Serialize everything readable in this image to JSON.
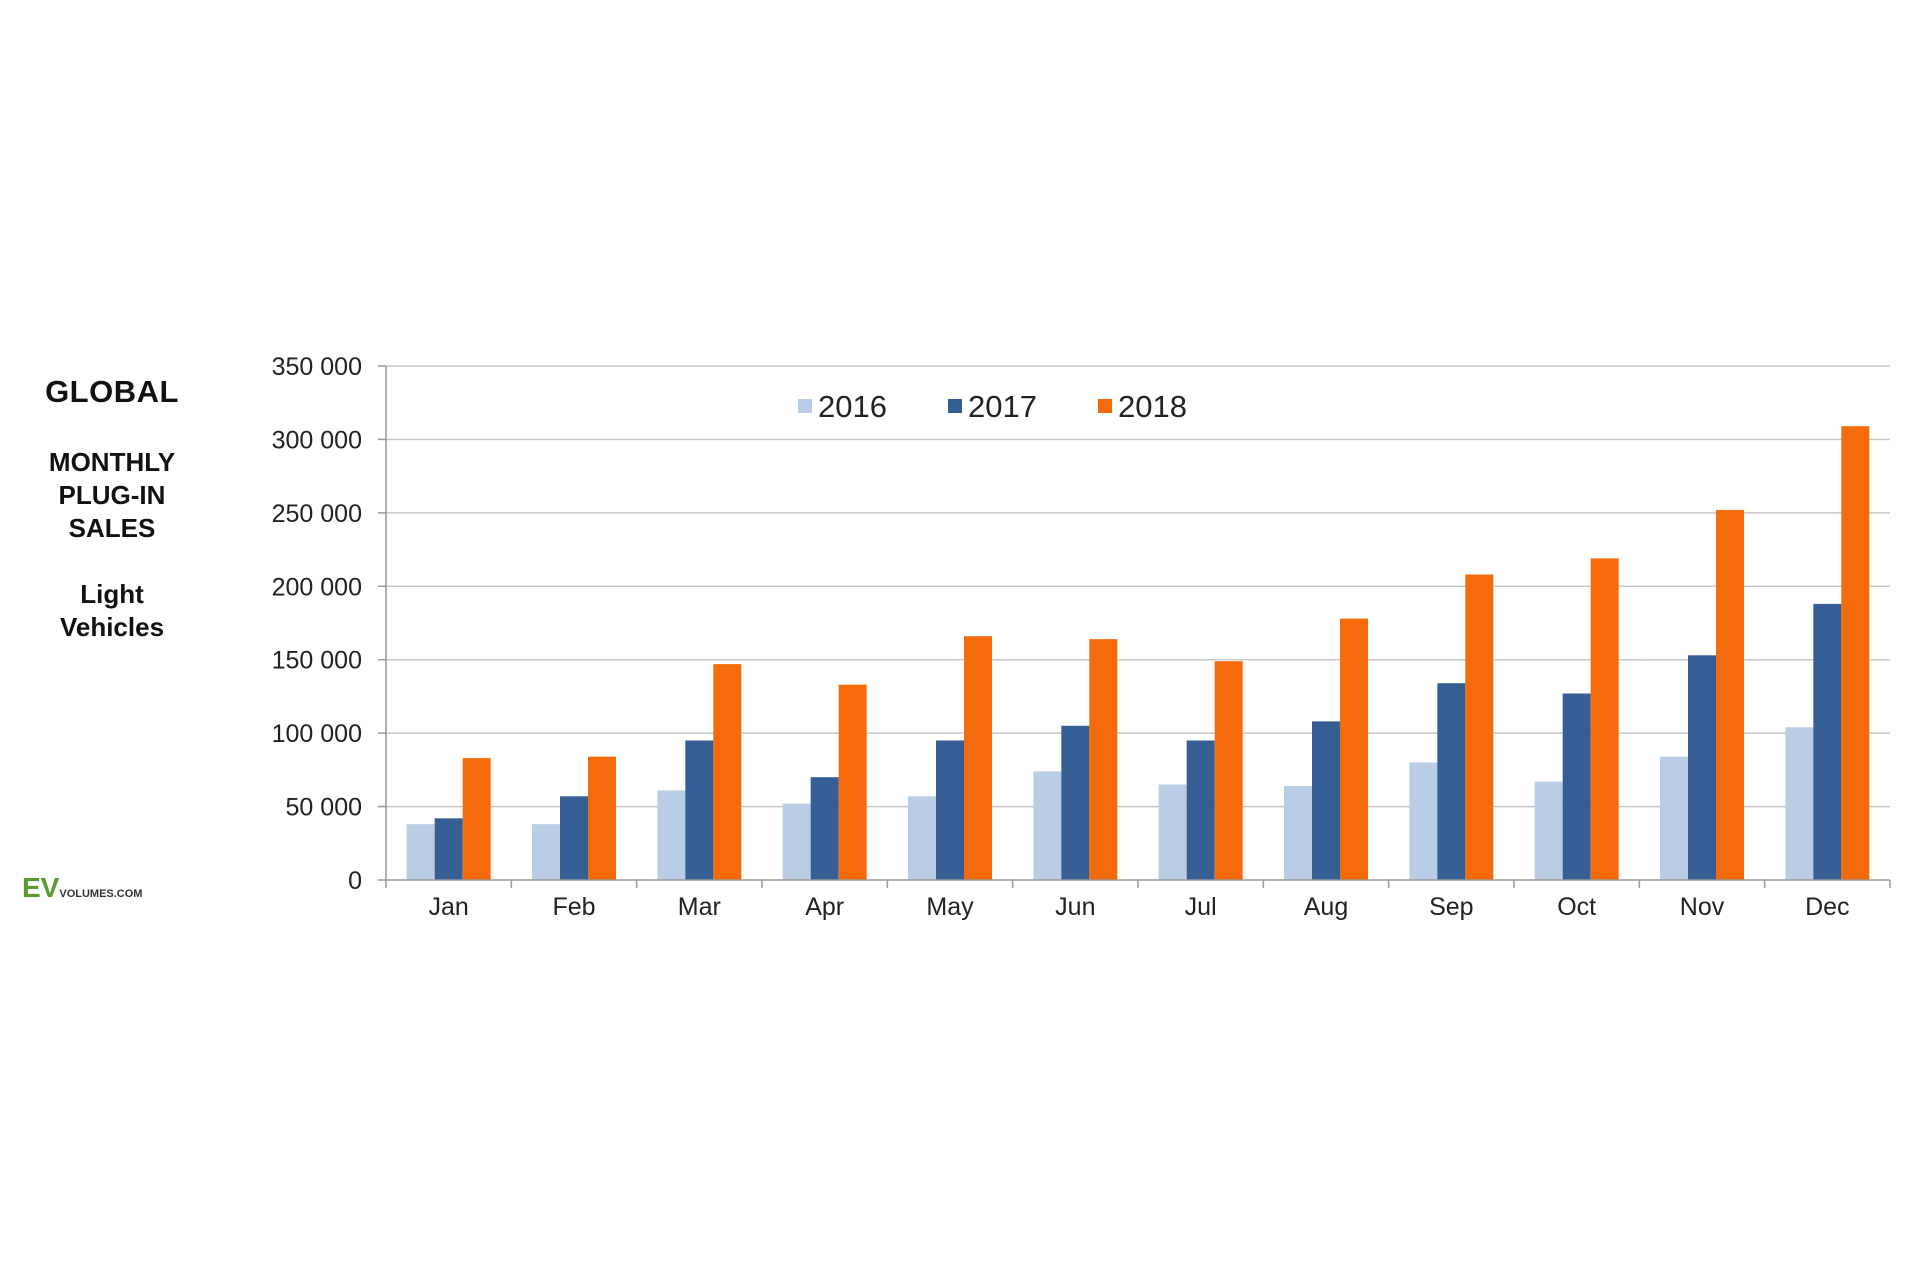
{
  "side_label": {
    "title": "GLOBAL",
    "subtitle_lines": [
      "MONTHLY",
      "PLUG-IN",
      "SALES"
    ],
    "segment_lines": [
      "Light",
      "Vehicles"
    ]
  },
  "logo": {
    "ev": "EV",
    "rest": "VOLUMES.COM"
  },
  "chart_data": {
    "type": "bar",
    "categories": [
      "Jan",
      "Feb",
      "Mar",
      "Apr",
      "May",
      "Jun",
      "Jul",
      "Aug",
      "Sep",
      "Oct",
      "Nov",
      "Dec"
    ],
    "series": [
      {
        "name": "2016",
        "color": "#b9cde4",
        "values": [
          38000,
          38000,
          61000,
          52000,
          57000,
          74000,
          65000,
          64000,
          80000,
          67000,
          84000,
          104000
        ]
      },
      {
        "name": "2017",
        "color": "#345e94",
        "values": [
          42000,
          57000,
          95000,
          70000,
          95000,
          105000,
          95000,
          108000,
          134000,
          127000,
          153000,
          188000
        ]
      },
      {
        "name": "2018",
        "color": "#f56a0a",
        "values": [
          83000,
          84000,
          147000,
          133000,
          166000,
          164000,
          149000,
          178000,
          208000,
          219000,
          252000,
          309000
        ]
      }
    ],
    "ylim": [
      0,
      350000
    ],
    "yticks": [
      0,
      50000,
      100000,
      150000,
      200000,
      250000,
      300000,
      350000
    ],
    "ytick_labels": [
      "0",
      "50 000",
      "100 000",
      "150 000",
      "200 000",
      "250 000",
      "300 000",
      "350 000"
    ],
    "grid": true,
    "legend_position": "top-center"
  }
}
